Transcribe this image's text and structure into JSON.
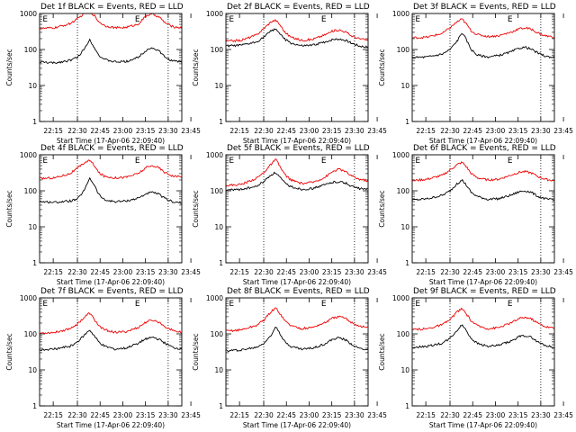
{
  "colors": {
    "events": "#000000",
    "lld": "#ee0000",
    "axis": "#000000",
    "background": "#ffffff"
  },
  "chart_data": {
    "type": "line",
    "panel_grid": {
      "rows": 3,
      "cols": 3
    },
    "common": {
      "xlabel": "Start Time (17-Apr-06 22:09:40)",
      "ylabel": "Counts/sec",
      "y_scale": "log",
      "ylim": [
        1,
        1000
      ],
      "y_ticks": [
        1,
        10,
        100,
        1000
      ],
      "y_tick_labels": [
        "1",
        "10",
        "100",
        "1000"
      ],
      "x_range_minutes": [
        5,
        99
      ],
      "x_ticks_minutes": [
        14,
        30,
        45,
        60,
        75,
        90,
        105
      ],
      "x_tick_labels": [
        "22:15",
        "22:30",
        "22:45",
        "23:00",
        "23:15",
        "23:30",
        "23:45"
      ],
      "vertical_dotted_lines_minutes": [
        30,
        90
      ],
      "markers": [
        "E",
        "E"
      ],
      "marker_minutes": [
        7,
        68
      ]
    },
    "panels": [
      {
        "title": "Det 1f BLACK = Events, RED = LLD",
        "series": [
          {
            "name": "Events",
            "x": [
              5,
              15,
              25,
              30,
              35,
              38,
              41,
              44,
              48,
              55,
              62,
              70,
              76,
              80,
              84,
              88,
              93,
              99
            ],
            "values": [
              45,
              42,
              50,
              60,
              110,
              190,
              120,
              70,
              52,
              45,
              46,
              60,
              100,
              110,
              90,
              60,
              48,
              45
            ]
          },
          {
            "name": "LLD",
            "x": [
              5,
              15,
              25,
              30,
              35,
              38,
              41,
              44,
              48,
              55,
              62,
              70,
              76,
              80,
              84,
              88,
              93,
              99
            ],
            "values": [
              380,
              400,
              520,
              700,
              1050,
              1150,
              900,
              600,
              460,
              400,
              410,
              500,
              900,
              950,
              800,
              550,
              430,
              400
            ]
          }
        ]
      },
      {
        "title": "Det 2f BLACK = Events, RED = LLD",
        "series": [
          {
            "name": "Events",
            "x": [
              5,
              15,
              25,
              30,
              35,
              38,
              41,
              44,
              48,
              55,
              62,
              70,
              76,
              80,
              84,
              88,
              93,
              99
            ],
            "values": [
              125,
              130,
              160,
              220,
              330,
              380,
              260,
              190,
              150,
              125,
              130,
              160,
              190,
              195,
              180,
              150,
              125,
              115
            ]
          },
          {
            "name": "LLD",
            "x": [
              5,
              15,
              25,
              30,
              35,
              38,
              41,
              44,
              48,
              55,
              62,
              70,
              76,
              80,
              84,
              88,
              93,
              99
            ],
            "values": [
              170,
              180,
              250,
              380,
              600,
              650,
              470,
              300,
              220,
              180,
              190,
              250,
              330,
              350,
              310,
              240,
              200,
              180
            ]
          }
        ]
      },
      {
        "title": "Det 3f BLACK = Events, RED = LLD",
        "series": [
          {
            "name": "Events",
            "x": [
              5,
              15,
              25,
              30,
              35,
              38,
              41,
              44,
              48,
              55,
              62,
              70,
              76,
              80,
              84,
              88,
              93,
              99
            ],
            "values": [
              60,
              62,
              75,
              100,
              180,
              300,
              180,
              100,
              70,
              62,
              68,
              85,
              110,
              115,
              100,
              80,
              65,
              60
            ]
          },
          {
            "name": "LLD",
            "x": [
              5,
              15,
              25,
              30,
              35,
              38,
              41,
              44,
              48,
              55,
              62,
              70,
              76,
              80,
              84,
              88,
              93,
              99
            ],
            "values": [
              210,
              220,
              280,
              400,
              600,
              700,
              500,
              330,
              260,
              230,
              240,
              300,
              380,
              400,
              360,
              290,
              240,
              220
            ]
          }
        ]
      },
      {
        "title": "Det 4f BLACK = Events, RED = LLD",
        "series": [
          {
            "name": "Events",
            "x": [
              5,
              15,
              25,
              30,
              35,
              38,
              41,
              44,
              48,
              55,
              62,
              70,
              76,
              80,
              84,
              88,
              93,
              99
            ],
            "values": [
              50,
              48,
              52,
              58,
              110,
              230,
              150,
              80,
              55,
              50,
              52,
              62,
              85,
              90,
              80,
              60,
              50,
              45
            ]
          },
          {
            "name": "LLD",
            "x": [
              5,
              15,
              25,
              30,
              35,
              38,
              41,
              44,
              48,
              55,
              62,
              70,
              76,
              80,
              84,
              88,
              93,
              99
            ],
            "values": [
              220,
              230,
              300,
              420,
              620,
              700,
              520,
              320,
              250,
              230,
              240,
              300,
              450,
              500,
              430,
              320,
              260,
              240
            ]
          }
        ]
      },
      {
        "title": "Det 5f BLACK = Events, RED = LLD",
        "series": [
          {
            "name": "Events",
            "x": [
              5,
              15,
              25,
              30,
              35,
              38,
              41,
              44,
              48,
              55,
              62,
              70,
              76,
              80,
              84,
              88,
              93,
              99
            ],
            "values": [
              105,
              110,
              130,
              180,
              280,
              320,
              230,
              160,
              130,
              110,
              115,
              145,
              175,
              180,
              165,
              135,
              115,
              110
            ]
          },
          {
            "name": "LLD",
            "x": [
              5,
              15,
              25,
              30,
              35,
              38,
              41,
              44,
              48,
              55,
              62,
              70,
              76,
              80,
              84,
              88,
              93,
              99
            ],
            "values": [
              140,
              150,
              220,
              320,
              550,
              750,
              450,
              280,
              200,
              160,
              170,
              230,
              350,
              400,
              340,
              260,
              210,
              190
            ]
          }
        ]
      },
      {
        "title": "Det 6f BLACK = Events, RED = LLD",
        "series": [
          {
            "name": "Events",
            "x": [
              5,
              15,
              25,
              30,
              35,
              38,
              41,
              44,
              48,
              55,
              62,
              70,
              76,
              80,
              84,
              88,
              93,
              99
            ],
            "values": [
              55,
              60,
              75,
              100,
              160,
              200,
              140,
              90,
              70,
              58,
              60,
              75,
              95,
              100,
              90,
              70,
              60,
              55
            ]
          },
          {
            "name": "LLD",
            "x": [
              5,
              15,
              25,
              30,
              35,
              38,
              41,
              44,
              48,
              55,
              62,
              70,
              76,
              80,
              84,
              88,
              93,
              99
            ],
            "values": [
              190,
              210,
              270,
              380,
              540,
              620,
              460,
              300,
              230,
              200,
              210,
              270,
              330,
              340,
              310,
              250,
              210,
              190
            ]
          }
        ]
      },
      {
        "title": "Det 7f BLACK = Events, RED = LLD",
        "series": [
          {
            "name": "Events",
            "x": [
              5,
              15,
              25,
              30,
              35,
              38,
              41,
              44,
              48,
              55,
              62,
              70,
              76,
              80,
              84,
              88,
              93,
              99
            ],
            "values": [
              36,
              38,
              45,
              60,
              95,
              130,
              90,
              60,
              45,
              38,
              40,
              55,
              75,
              80,
              70,
              55,
              42,
              38
            ]
          },
          {
            "name": "LLD",
            "x": [
              5,
              15,
              25,
              30,
              35,
              38,
              41,
              44,
              48,
              55,
              62,
              70,
              76,
              80,
              84,
              88,
              93,
              99
            ],
            "values": [
              105,
              110,
              140,
              190,
              300,
              380,
              260,
              170,
              130,
              110,
              115,
              150,
              220,
              240,
              210,
              160,
              125,
              110
            ]
          }
        ]
      },
      {
        "title": "Det 8f BLACK = Events, RED = LLD",
        "series": [
          {
            "name": "Events",
            "x": [
              5,
              15,
              25,
              30,
              35,
              38,
              41,
              44,
              48,
              55,
              62,
              70,
              76,
              80,
              84,
              88,
              93,
              99
            ],
            "values": [
              34,
              36,
              42,
              55,
              90,
              170,
              100,
              60,
              45,
              38,
              40,
              52,
              72,
              78,
              68,
              52,
              40,
              36
            ]
          },
          {
            "name": "LLD",
            "x": [
              5,
              15,
              25,
              30,
              35,
              38,
              41,
              44,
              48,
              55,
              62,
              70,
              76,
              80,
              84,
              88,
              93,
              99
            ],
            "values": [
              120,
              130,
              170,
              240,
              420,
              520,
              360,
              230,
              170,
              140,
              150,
              200,
              280,
              300,
              270,
              210,
              165,
              150
            ]
          }
        ]
      },
      {
        "title": "Det 9f BLACK = Events, RED = LLD",
        "series": [
          {
            "name": "Events",
            "x": [
              5,
              15,
              25,
              30,
              35,
              38,
              41,
              44,
              48,
              55,
              62,
              70,
              76,
              80,
              84,
              88,
              93,
              99
            ],
            "values": [
              42,
              45,
              55,
              75,
              130,
              180,
              120,
              75,
              55,
              45,
              48,
              62,
              85,
              90,
              80,
              60,
              48,
              42
            ]
          },
          {
            "name": "LLD",
            "x": [
              5,
              15,
              25,
              30,
              35,
              38,
              41,
              44,
              48,
              55,
              62,
              70,
              76,
              80,
              84,
              88,
              93,
              99
            ],
            "values": [
              130,
              140,
              180,
              250,
              420,
              500,
              350,
              230,
              170,
              140,
              150,
              200,
              270,
              290,
              260,
              200,
              160,
              145
            ]
          }
        ]
      }
    ]
  }
}
